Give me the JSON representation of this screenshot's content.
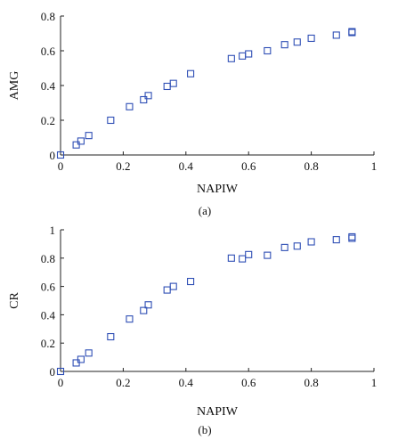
{
  "marker_color": "#2f4fb5",
  "chart_data": [
    {
      "type": "scatter",
      "panel_label": "(a)",
      "xlabel": "NAPIW",
      "ylabel": "AMG",
      "xlim": [
        0,
        1
      ],
      "ylim": [
        0,
        0.8
      ],
      "x_ticks": [
        0,
        0.2,
        0.4,
        0.6,
        0.8,
        1
      ],
      "x_tick_labels": [
        "0",
        "0.2",
        "0.4",
        "0.6",
        "0.8",
        "1"
      ],
      "y_ticks": [
        0,
        0.2,
        0.4,
        0.6,
        0.8
      ],
      "y_tick_labels": [
        "0",
        "0.2",
        "0.4",
        "0.6",
        "0.8"
      ],
      "grid": false,
      "marker": "square-open",
      "x": [
        0.0,
        0.05,
        0.065,
        0.09,
        0.16,
        0.22,
        0.265,
        0.28,
        0.34,
        0.36,
        0.415,
        0.545,
        0.58,
        0.6,
        0.66,
        0.715,
        0.755,
        0.8,
        0.88,
        0.93,
        0.93
      ],
      "y": [
        0.0,
        0.058,
        0.08,
        0.112,
        0.2,
        0.278,
        0.318,
        0.342,
        0.395,
        0.412,
        0.468,
        0.555,
        0.57,
        0.582,
        0.6,
        0.635,
        0.65,
        0.672,
        0.69,
        0.705,
        0.71
      ]
    },
    {
      "type": "scatter",
      "panel_label": "(b)",
      "xlabel": "NAPIW",
      "ylabel": "CR",
      "xlim": [
        0,
        1
      ],
      "ylim": [
        0,
        1
      ],
      "x_ticks": [
        0,
        0.2,
        0.4,
        0.6,
        0.8,
        1
      ],
      "x_tick_labels": [
        "0",
        "0.2",
        "0.4",
        "0.6",
        "0.8",
        "1"
      ],
      "y_ticks": [
        0,
        0.2,
        0.4,
        0.6,
        0.8,
        1
      ],
      "y_tick_labels": [
        "0",
        "0.2",
        "0.4",
        "0.6",
        "0.8",
        "1"
      ],
      "grid": false,
      "marker": "square-open",
      "x": [
        0.0,
        0.05,
        0.065,
        0.09,
        0.16,
        0.22,
        0.265,
        0.28,
        0.34,
        0.36,
        0.415,
        0.545,
        0.58,
        0.6,
        0.66,
        0.715,
        0.755,
        0.8,
        0.88,
        0.93,
        0.93
      ],
      "y": [
        0.0,
        0.06,
        0.085,
        0.13,
        0.245,
        0.37,
        0.43,
        0.47,
        0.575,
        0.6,
        0.635,
        0.8,
        0.795,
        0.825,
        0.82,
        0.875,
        0.885,
        0.915,
        0.93,
        0.94,
        0.95
      ]
    }
  ]
}
